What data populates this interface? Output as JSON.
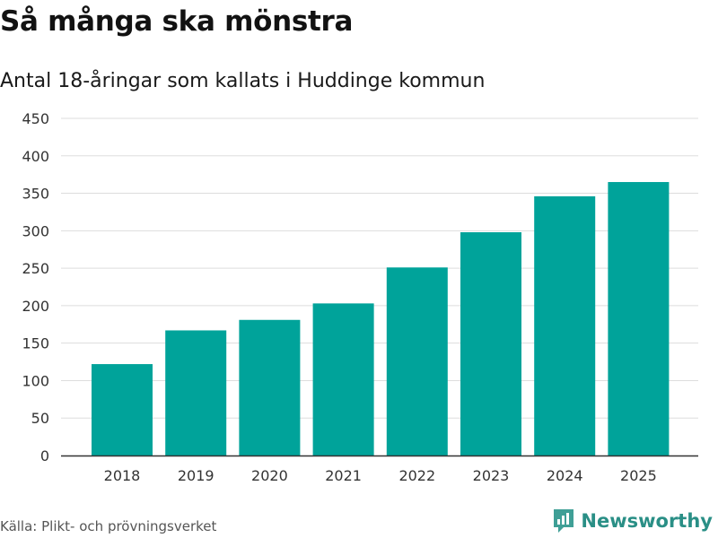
{
  "header": {
    "title": "Så många ska mönstra",
    "subtitle": "Antal 18-åringar som kallats i Huddinge kommun"
  },
  "footer": {
    "source": "Källa: Plikt- och prövningsverket",
    "brand": "Newsworthy"
  },
  "colors": {
    "bar": "#00a39a",
    "grid": "#dddddd",
    "axis": "#333333",
    "brand": "#2a8f86"
  },
  "chart_data": {
    "type": "bar",
    "title": "Så många ska mönstra",
    "subtitle": "Antal 18-åringar som kallats i Huddinge kommun",
    "xlabel": "",
    "ylabel": "",
    "categories": [
      "2018",
      "2019",
      "2020",
      "2021",
      "2022",
      "2023",
      "2024",
      "2025"
    ],
    "values": [
      122,
      167,
      181,
      203,
      251,
      298,
      346,
      365
    ],
    "ylim": [
      0,
      450
    ],
    "yticks": [
      "0",
      "50",
      "100",
      "150",
      "200",
      "250",
      "300",
      "350",
      "400",
      "450"
    ],
    "grid": true
  }
}
